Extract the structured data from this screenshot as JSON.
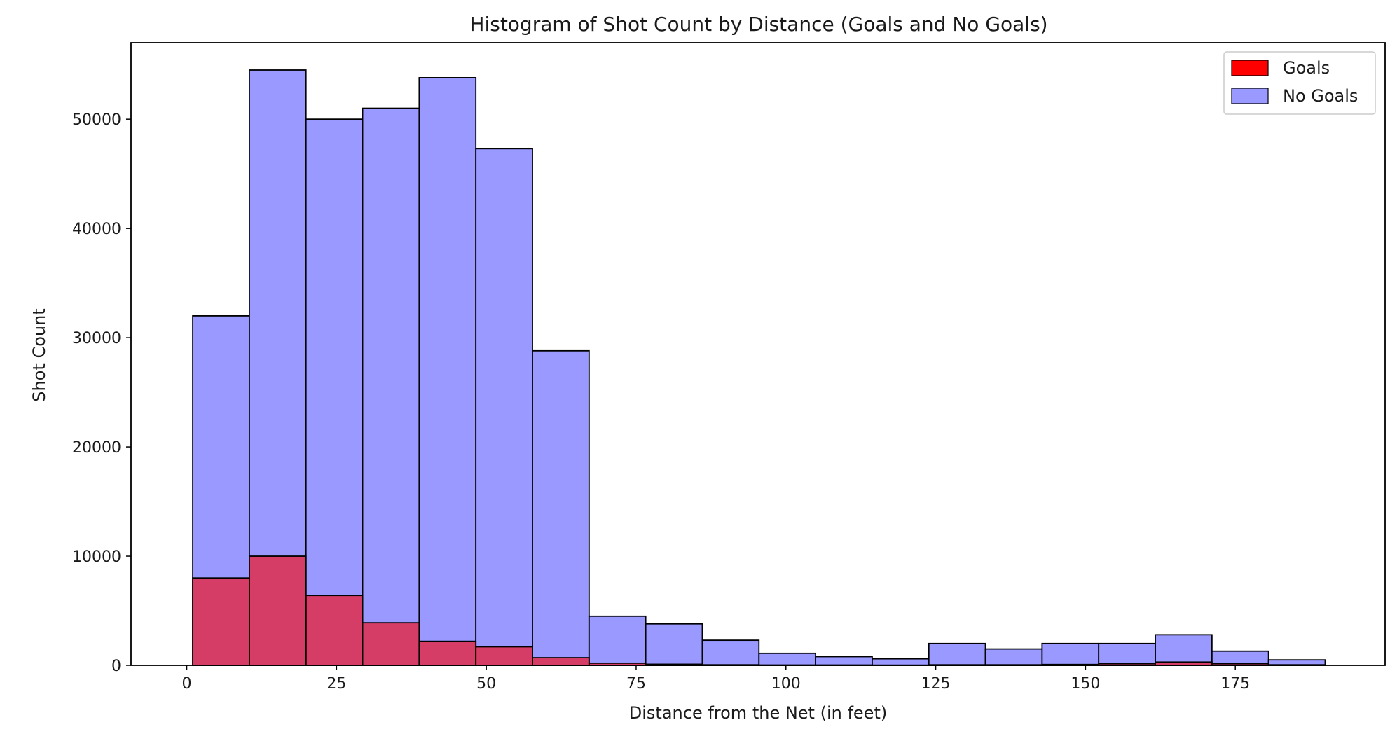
{
  "chart_data": {
    "type": "bar",
    "title": "Histogram of Shot Count by Distance (Goals and No Goals)",
    "xlabel": "Distance from the Net (in feet)",
    "ylabel": "Shot Count",
    "xlim": [
      -9.3,
      200
    ],
    "ylim": [
      0,
      57000
    ],
    "xticks": [
      0,
      25,
      50,
      75,
      100,
      125,
      150,
      175
    ],
    "yticks": [
      0,
      10000,
      20000,
      30000,
      40000,
      50000
    ],
    "grid": false,
    "legend": {
      "placement": "top-right",
      "entries": [
        "Goals",
        "No Goals"
      ]
    },
    "bin_edges": [
      1,
      10.45,
      19.9,
      29.35,
      38.8,
      48.25,
      57.7,
      67.15,
      76.6,
      86.05,
      95.5,
      104.95,
      114.4,
      123.85,
      133.3,
      142.75,
      152.2,
      161.65,
      171.1,
      180.55,
      190
    ],
    "series": [
      {
        "name": "No Goals",
        "color": "#9999ff",
        "values": [
          32000,
          54500,
          50000,
          51000,
          53800,
          47300,
          28800,
          4500,
          3800,
          2300,
          1100,
          800,
          600,
          2000,
          1500,
          2000,
          2000,
          2800,
          1300,
          500
        ]
      },
      {
        "name": "Goals",
        "color": "#ff0000",
        "values": [
          8000,
          10000,
          6400,
          3900,
          2200,
          1700,
          700,
          200,
          100,
          50,
          30,
          30,
          20,
          50,
          50,
          80,
          150,
          300,
          150,
          50
        ]
      }
    ]
  }
}
